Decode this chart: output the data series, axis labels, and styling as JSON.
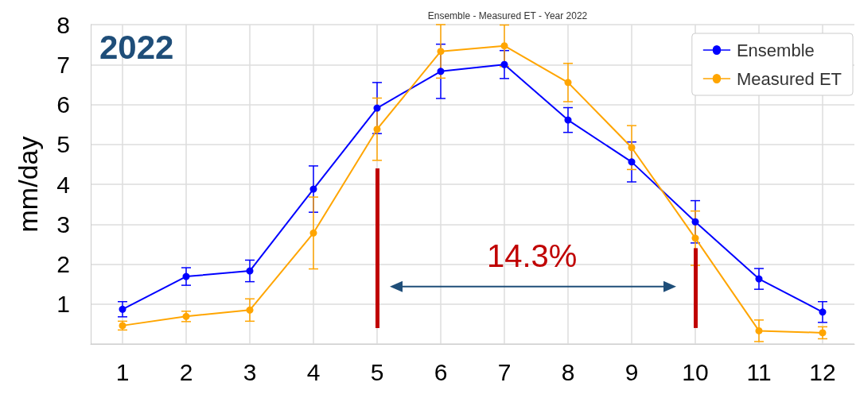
{
  "chart_data": {
    "type": "line",
    "title": "Ensemble - Measured ET - Year 2022",
    "ylabel": "mm/day",
    "x": [
      1,
      2,
      3,
      4,
      5,
      6,
      7,
      8,
      9,
      10,
      11,
      12
    ],
    "xlim": [
      0.5,
      12.5
    ],
    "xticks": [
      1,
      2,
      3,
      4,
      5,
      6,
      7,
      8,
      9,
      10,
      11,
      12
    ],
    "ylim": [
      0,
      8
    ],
    "yticks": [
      {
        "value": 0,
        "label": null
      },
      1,
      2,
      3,
      4,
      5,
      6,
      7,
      8
    ],
    "series": [
      {
        "name": "Ensemble",
        "color": "#0000ff",
        "values": [
          0.87,
          1.69,
          1.83,
          3.88,
          5.91,
          6.83,
          7.0,
          5.61,
          4.56,
          3.06,
          1.63,
          0.8
        ],
        "errors": [
          0.19,
          0.22,
          0.27,
          0.58,
          0.64,
          0.68,
          0.35,
          0.31,
          0.5,
          0.53,
          0.26,
          0.26
        ]
      },
      {
        "name": "Measured ET",
        "color": "#ffa500",
        "values": [
          0.46,
          0.69,
          0.85,
          2.78,
          5.38,
          7.33,
          7.47,
          6.55,
          4.92,
          2.65,
          0.33,
          0.28
        ],
        "errors": [
          0.11,
          0.13,
          0.28,
          0.9,
          0.78,
          0.67,
          0.52,
          0.48,
          0.55,
          0.68,
          0.27,
          0.15
        ]
      }
    ],
    "ref_lines": [
      {
        "axis": "x",
        "value": 5,
        "label": null,
        "color": "#c00000"
      },
      {
        "axis": "x",
        "value": 10,
        "label": null,
        "color": "#c00000"
      }
    ],
    "annotations": [
      "2022",
      "14.3%"
    ],
    "grid": true,
    "legend": "top right",
    "marker": "circle",
    "line_style": "solid"
  }
}
